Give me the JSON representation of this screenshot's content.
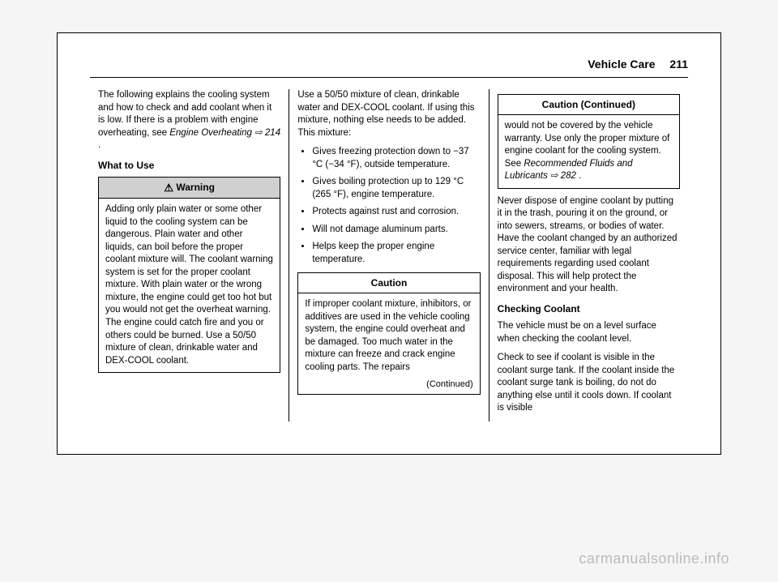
{
  "header": {
    "section": "Vehicle Care",
    "page_num": "211"
  },
  "col1": {
    "intro": "The following explains the cooling system and how to check and add coolant when it is low. If there is a problem with engine overheating, see ",
    "intro_link": "Engine Overheating",
    "intro_link_ref": " ⇨ 214 ",
    "intro_tail": ".",
    "subhead": "What to Use",
    "warning_title": "Warning",
    "warning_body": "Adding only plain water or some other liquid to the cooling system can be dangerous. Plain water and other liquids, can boil before the proper coolant mixture will. The coolant warning system is set for the proper coolant mixture. With plain water or the wrong mixture, the engine could get too hot but you would not get the overheat warning. The engine could catch fire and you or others could be burned. Use a 50/50 mixture of clean, drinkable water and DEX-COOL coolant."
  },
  "col2": {
    "intro": "Use a 50/50 mixture of clean, drinkable water and DEX-COOL coolant. If using this mixture, nothing else needs to be added. This mixture:",
    "bullets": [
      "Gives freezing protection down to −37 °C (−34 °F), outside temperature.",
      "Gives boiling protection up to 129 °C (265 °F), engine temperature.",
      "Protects against rust and corrosion.",
      "Will not damage aluminum parts.",
      "Helps keep the proper engine temperature."
    ],
    "caution_title": "Caution",
    "caution_body": "If improper coolant mixture, inhibitors, or additives are used in the vehicle cooling system, the engine could overheat and be damaged. Too much water in the mixture can freeze and crack engine cooling parts. The repairs",
    "continued": "(Continued)"
  },
  "col3": {
    "caution_cont_title": "Caution  (Continued)",
    "caution_cont_body_pre": "would not be covered by the vehicle warranty. Use only the proper mixture of engine coolant for the cooling system. See ",
    "caution_cont_link": "Recommended Fluids and Lubricants",
    "caution_cont_ref": " ⇨ 282 ",
    "caution_cont_tail": ".",
    "para1": "Never dispose of engine coolant by putting it in the trash, pouring it on the ground, or into sewers, streams, or bodies of water. Have the coolant changed by an authorized service center, familiar with legal requirements regarding used coolant disposal. This will help protect the environment and your health.",
    "subhead": "Checking Coolant",
    "para2": "The vehicle must be on a level surface when checking the coolant level.",
    "para3": "Check to see if coolant is visible in the coolant surge tank. If the coolant inside the coolant surge tank is boiling, do not do anything else until it cools down. If coolant is visible"
  },
  "watermark": "carmanualsonline.info"
}
